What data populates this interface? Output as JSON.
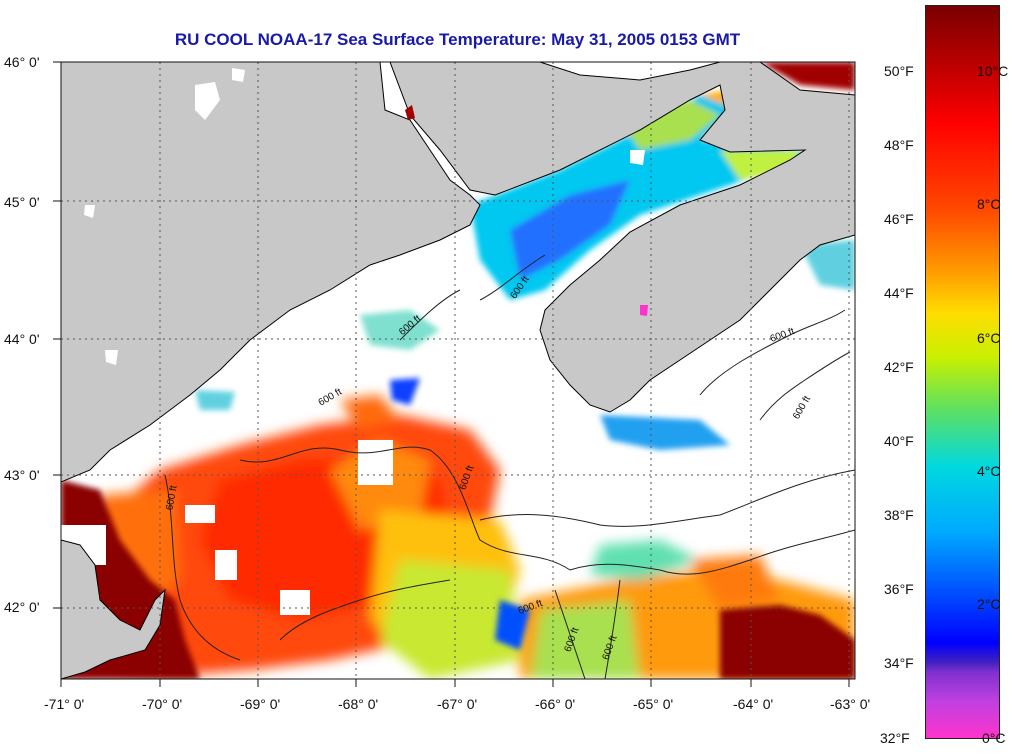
{
  "title": "RU COOL  NOAA-17  Sea Surface Temperature:  May 31, 2005 0153 GMT",
  "lon_ticks": [
    "-71° 0'",
    "-70° 0'",
    "-69° 0'",
    "-68° 0'",
    "-67° 0'",
    "-66° 0'",
    "-65° 0'",
    "-64° 0'",
    "-63° 0'"
  ],
  "lat_ticks": [
    "46° 0'",
    "45° 0'",
    "44° 0'",
    "43° 0'",
    "42° 0'"
  ],
  "colorbar": {
    "fahrenheit_labels": [
      "50°F",
      "48°F",
      "46°F",
      "44°F",
      "42°F",
      "40°F",
      "38°F",
      "36°F",
      "34°F",
      "32°F"
    ],
    "celsius_labels": [
      "10°C",
      "8°C",
      "6°C",
      "4°C",
      "2°C",
      "0°C"
    ]
  },
  "contour_labels": [
    "600 ft",
    "600 ft",
    "600 ft",
    "600 ft",
    "600 ft",
    "600 ft",
    "600 ft",
    "600 ft",
    "600 ft",
    "600 ft"
  ],
  "colors": {
    "title": "#1a1aa8",
    "land": "#c8c8c8",
    "cloud": "#ffffff",
    "grid": "#555555"
  }
}
